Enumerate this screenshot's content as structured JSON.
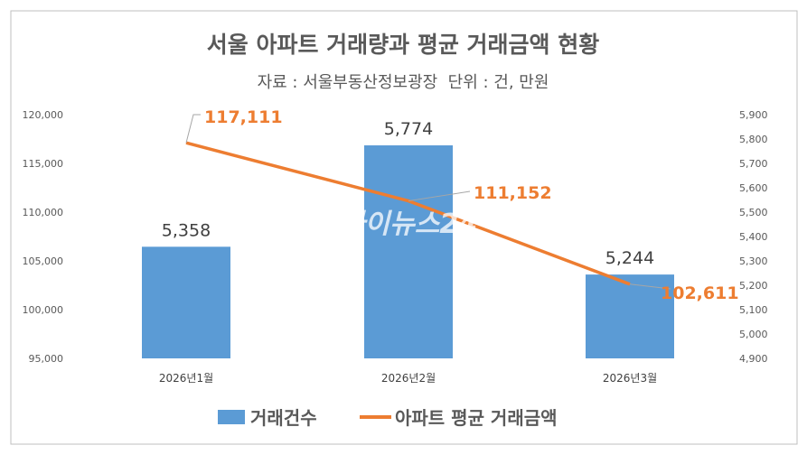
{
  "chart_data": {
    "type": "bar",
    "title": "서울 아파트 거래량과 평균 거래금액 현황",
    "subtitle": "자료 : 서울부동산정보광장  단위 : 건, 만원",
    "categories": [
      "2026년1월",
      "2026년2월",
      "2026년3월"
    ],
    "series": [
      {
        "name": "거래건수",
        "type": "bar",
        "axis": "right",
        "color": "#5B9BD5",
        "values": [
          5358,
          5774,
          5244
        ],
        "labels": [
          "5,358",
          "5,774",
          "5,244"
        ]
      },
      {
        "name": "아파트 평균 거래금액",
        "type": "line",
        "axis": "left",
        "color": "#ED7D31",
        "values": [
          117111,
          111152,
          102611
        ],
        "labels": [
          "117,111",
          "111,152",
          "102,611"
        ]
      }
    ],
    "left_axis": {
      "range": [
        95000,
        120000
      ],
      "ticks": [
        "95,000",
        "100,000",
        "105,000",
        "110,000",
        "115,000",
        "120,000"
      ]
    },
    "right_axis": {
      "range": [
        4900,
        5900
      ],
      "ticks": [
        "4,900",
        "5,000",
        "5,100",
        "5,200",
        "5,300",
        "5,400",
        "5,500",
        "5,600",
        "5,700",
        "5,800",
        "5,900"
      ]
    },
    "grid": false,
    "legend": "bottom",
    "watermark": "아이뉴스24"
  }
}
